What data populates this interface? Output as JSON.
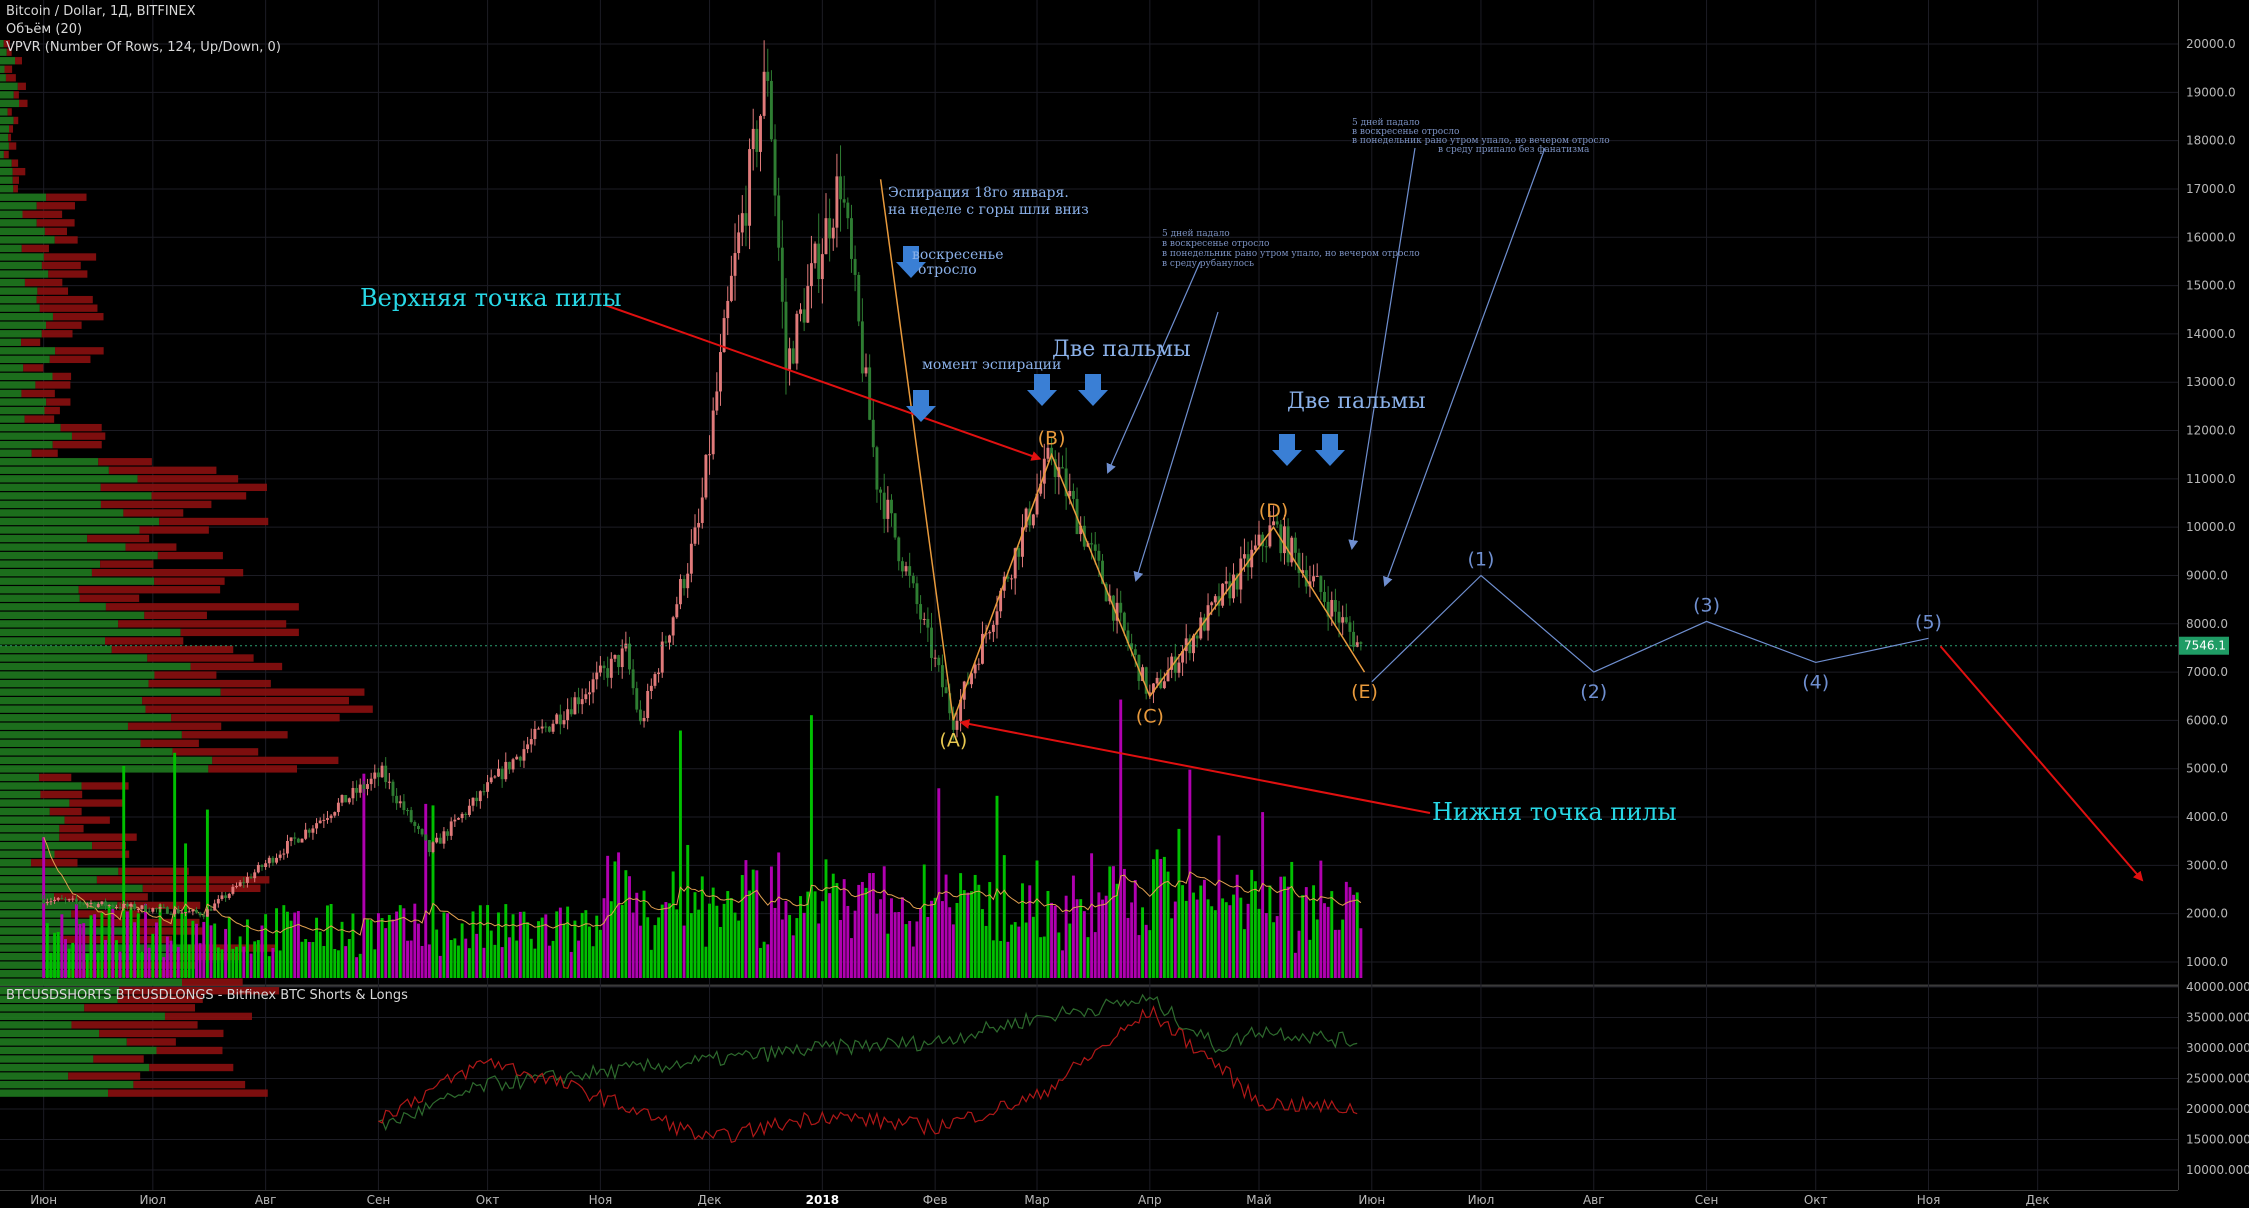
{
  "header": {
    "symbol_line": "Bitcoin / Dollar, 1Д, BITFINEX",
    "volume_line": "Объём (20)",
    "vpvr_line": "VPVR (Number Of Rows, 124, Up/Down, 0)",
    "sub_title": "BTCUSDSHORTS BTCUSDLONGS - Bitfinex BTC Shorts & Longs"
  },
  "colors": {
    "background": "#000000",
    "up_candle": "#e07a7a",
    "down_candle": "#2e7d32",
    "volume_up": "#00c000",
    "volume_down": "#b000b0",
    "vpvr_up": "#1f7a1f",
    "vpvr_down": "#8b1010",
    "wave": "#e89a3c",
    "forecast": "#6f8fd0",
    "red_arrow": "#e01010",
    "blue_arrow": "#3a7fd5",
    "label_cyan": "#28d8e6",
    "price_tag": "#1f9c65"
  },
  "chart_data": [
    {
      "type": "line",
      "title": "Bitcoin / Dollar, 1Д, BITFINEX",
      "x_axis_labels": [
        "Июн",
        "Июл",
        "Авг",
        "Сен",
        "Окт",
        "Ноя",
        "Дек",
        "2018",
        "Фев",
        "Мар",
        "Апр",
        "Май",
        "Июн",
        "Июл",
        "Авг",
        "Сен",
        "Окт",
        "Ноя",
        "Дек"
      ],
      "y_axis_labels": [
        "20000.0",
        "19000.0",
        "18000.0",
        "17000.0",
        "16000.0",
        "15000.0",
        "14000.0",
        "13000.0",
        "12000.0",
        "11000.0",
        "10000.0",
        "9000.0",
        "8000.0",
        "7000.0",
        "6000.0",
        "5000.0",
        "4000.0",
        "3000.0",
        "2000.0",
        "1000.0"
      ],
      "ylim": [
        500,
        20500
      ],
      "last_price": "7546.1",
      "price_series": {
        "name": "",
        "x": [
          "2017-06-01",
          "2017-07-15",
          "2017-08-20",
          "2017-09-02",
          "2017-09-15",
          "2017-10-12",
          "2017-11-08",
          "2017-11-12",
          "2017-11-28",
          "2017-12-07",
          "2017-12-17",
          "2017-12-22",
          "2018-01-06",
          "2018-01-16",
          "2018-02-06",
          "2018-03-05",
          "2018-04-01",
          "2018-05-05",
          "2018-05-29"
        ],
        "values": [
          2300,
          2000,
          4200,
          4900,
          3300,
          5500,
          7400,
          5900,
          10000,
          15000,
          19500,
          13300,
          17200,
          11000,
          6000,
          11500,
          6500,
          10000,
          7500
        ]
      },
      "wave_labels": [
        {
          "label": "(A)",
          "date": "2018-02-06",
          "price": 6000
        },
        {
          "label": "(B)",
          "date": "2018-03-05",
          "price": 11500
        },
        {
          "label": "(C)",
          "date": "2018-04-01",
          "price": 6500
        },
        {
          "label": "(D)",
          "date": "2018-05-05",
          "price": 10000
        },
        {
          "label": "(E)",
          "date": "2018-05-30",
          "price": 7000
        }
      ],
      "forecast_labels": [
        {
          "label": "(1)",
          "date": "2018-07-01",
          "price": 9000
        },
        {
          "label": "(2)",
          "date": "2018-08-01",
          "price": 7000
        },
        {
          "label": "(3)",
          "date": "2018-09-01",
          "price": 8050
        },
        {
          "label": "(4)",
          "date": "2018-10-01",
          "price": 7200
        },
        {
          "label": "(5)",
          "date": "2018-11-01",
          "price": 7700
        }
      ],
      "annotations": {
        "upper_saw": "Верхняя точка пилы",
        "lower_saw": "Нижня точка пилы",
        "two_palms_1": "Две пальмы",
        "two_palms_2": "Две пальмы",
        "expiration_moment": "момент эспирации",
        "jan_expiry_1": "Эспирация 18го января.",
        "jan_expiry_2": "на неделе с горы шли вниз",
        "sunday_1": "воскресенье",
        "sunday_2": "отросло",
        "note_a_1": "5 дней падало",
        "note_a_2": "в воскресенье отросло",
        "note_a_3": "в понедельник рано утром упало, но вечером отросло",
        "note_a_4": "в среду рубанулось",
        "note_b_1": "5 дней падало",
        "note_b_2": "в воскресенье отросло",
        "note_b_3": "в понедельник рано утром упало, но вечером отросло",
        "note_b_4": "в среду припало без фанатизма"
      },
      "grid": true
    },
    {
      "type": "line",
      "title": "BTCUSDSHORTS BTCUSDLONGS - Bitfinex BTC Shorts & Longs",
      "y_axis_labels": [
        "40000.0000",
        "35000.0000",
        "30000.0000",
        "25000.0000",
        "20000.0000",
        "15000.0000",
        "10000.0000"
      ],
      "ylim": [
        8500,
        40500
      ],
      "series": [
        {
          "name": "",
          "x": [
            "2017-09-01",
            "2017-10-01",
            "2017-11-01",
            "2017-12-01",
            "2018-01-01",
            "2018-02-01",
            "2018-03-01",
            "2018-04-01",
            "2018-04-20",
            "2018-05-01",
            "2018-05-28"
          ],
          "values": [
            17000,
            24000,
            26000,
            28000,
            30000,
            31000,
            35000,
            38000,
            30000,
            33000,
            31000
          ]
        },
        {
          "name": "",
          "x": [
            "2017-09-01",
            "2017-10-01",
            "2017-11-01",
            "2017-12-01",
            "2018-01-01",
            "2018-02-01",
            "2018-03-01",
            "2018-04-01",
            "2018-04-20",
            "2018-05-01",
            "2018-05-28"
          ],
          "values": [
            18500,
            28000,
            22000,
            15000,
            19000,
            17000,
            22000,
            36000,
            27000,
            21000,
            20000
          ]
        }
      ]
    }
  ]
}
